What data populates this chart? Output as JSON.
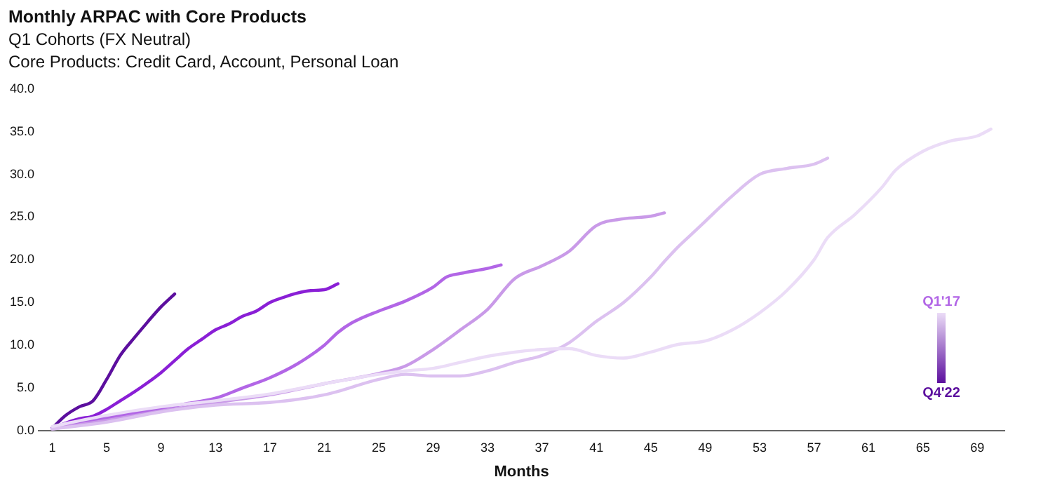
{
  "chart_data": {
    "type": "line",
    "title": "Monthly ARPAC with Core Products",
    "subtitle": "Q1 Cohorts (FX Neutral)",
    "xlabel": "Months",
    "annotations": [
      "Core Products: Credit Card, Account, Personal Loan",
      "Q1'17",
      "Q4'22"
    ],
    "xlim": [
      0,
      71
    ],
    "xticks": [
      1,
      5,
      9,
      13,
      17,
      21,
      25,
      29,
      33,
      37,
      41,
      45,
      49,
      53,
      57,
      61,
      65,
      69
    ],
    "ylim": [
      0,
      40
    ],
    "yticks": [
      {
        "value": 0,
        "label": "0.0"
      },
      {
        "value": 5,
        "label": "5.0"
      },
      {
        "value": 10,
        "label": "10.0"
      },
      {
        "value": 15,
        "label": "15.0"
      },
      {
        "value": 20,
        "label": "20.0"
      },
      {
        "value": 25,
        "label": "25.0"
      },
      {
        "value": 30,
        "label": "30.0"
      },
      {
        "value": 35,
        "label": "35.0"
      },
      {
        "value": 40,
        "label": "40.0"
      }
    ],
    "grid": false,
    "legend": false,
    "marker": "none",
    "line_style": "solid",
    "series": [
      {
        "color": "#ebdcf7",
        "x": [
          1,
          5,
          9,
          13,
          17,
          21,
          25,
          27,
          29,
          31,
          33,
          35,
          37,
          39,
          41,
          43,
          45,
          47,
          49,
          51,
          53,
          55,
          57,
          58,
          60,
          62,
          63,
          65,
          67,
          69,
          70
        ],
        "values": [
          0.5,
          1.8,
          2.8,
          3.5,
          4.3,
          5.5,
          6.6,
          7,
          7.3,
          8,
          8.7,
          9.2,
          9.5,
          9.6,
          8.8,
          8.5,
          9.2,
          10.1,
          10.5,
          11.8,
          13.8,
          16.4,
          20,
          22.6,
          25.3,
          28.5,
          30.5,
          32.7,
          33.9,
          34.5,
          35.3
        ]
      },
      {
        "color": "#dcc1f0",
        "x": [
          1,
          5,
          9,
          13,
          17,
          21,
          25,
          27,
          29,
          31,
          33,
          35,
          37,
          39,
          41,
          43,
          45,
          46,
          47,
          48,
          49,
          51,
          53,
          55,
          57,
          58
        ],
        "values": [
          0.2,
          1,
          2.2,
          3,
          3.3,
          4.2,
          6,
          6.6,
          6.4,
          6.4,
          7,
          8,
          8.8,
          10.3,
          12.8,
          15,
          18,
          19.8,
          21.5,
          23,
          24.5,
          27.5,
          30,
          30.7,
          31.2,
          31.9
        ]
      },
      {
        "color": "#c99ae8",
        "x": [
          1,
          5,
          9,
          13,
          17,
          21,
          25,
          27,
          29,
          31,
          33,
          35,
          37,
          39,
          41,
          43,
          45,
          46
        ],
        "values": [
          0.2,
          1.2,
          2.3,
          3.3,
          4.2,
          5.5,
          6.7,
          7.6,
          9.5,
          11.8,
          14.2,
          17.8,
          19.3,
          21,
          24,
          24.8,
          25.1,
          25.5
        ]
      },
      {
        "color": "#b266e6",
        "x": [
          1,
          5,
          9,
          11,
          13,
          15,
          17,
          19,
          21,
          22,
          23,
          25,
          27,
          29,
          30,
          31,
          33,
          34
        ],
        "values": [
          0.3,
          1.5,
          2.6,
          3.2,
          3.8,
          5,
          6.2,
          7.8,
          10,
          11.5,
          12.6,
          14,
          15.2,
          16.8,
          18,
          18.4,
          19,
          19.4
        ]
      },
      {
        "color": "#8a1fd6",
        "x": [
          1,
          2,
          3,
          4,
          5,
          6,
          7,
          8,
          9,
          10,
          11,
          12,
          13,
          14,
          15,
          16,
          17,
          18,
          19,
          20,
          21,
          22
        ],
        "values": [
          0.3,
          0.9,
          1.4,
          1.7,
          2.5,
          3.5,
          4.5,
          5.6,
          6.8,
          8.2,
          9.6,
          10.7,
          11.8,
          12.5,
          13.4,
          14,
          15,
          15.6,
          16.1,
          16.4,
          16.5,
          17.2
        ]
      },
      {
        "color": "#5c0f9e",
        "x": [
          1,
          2,
          3,
          4,
          5,
          6,
          7,
          8,
          9,
          10
        ],
        "values": [
          0.3,
          1.8,
          2.8,
          3.5,
          6,
          8.8,
          10.8,
          12.7,
          14.5,
          16
        ]
      }
    ]
  }
}
